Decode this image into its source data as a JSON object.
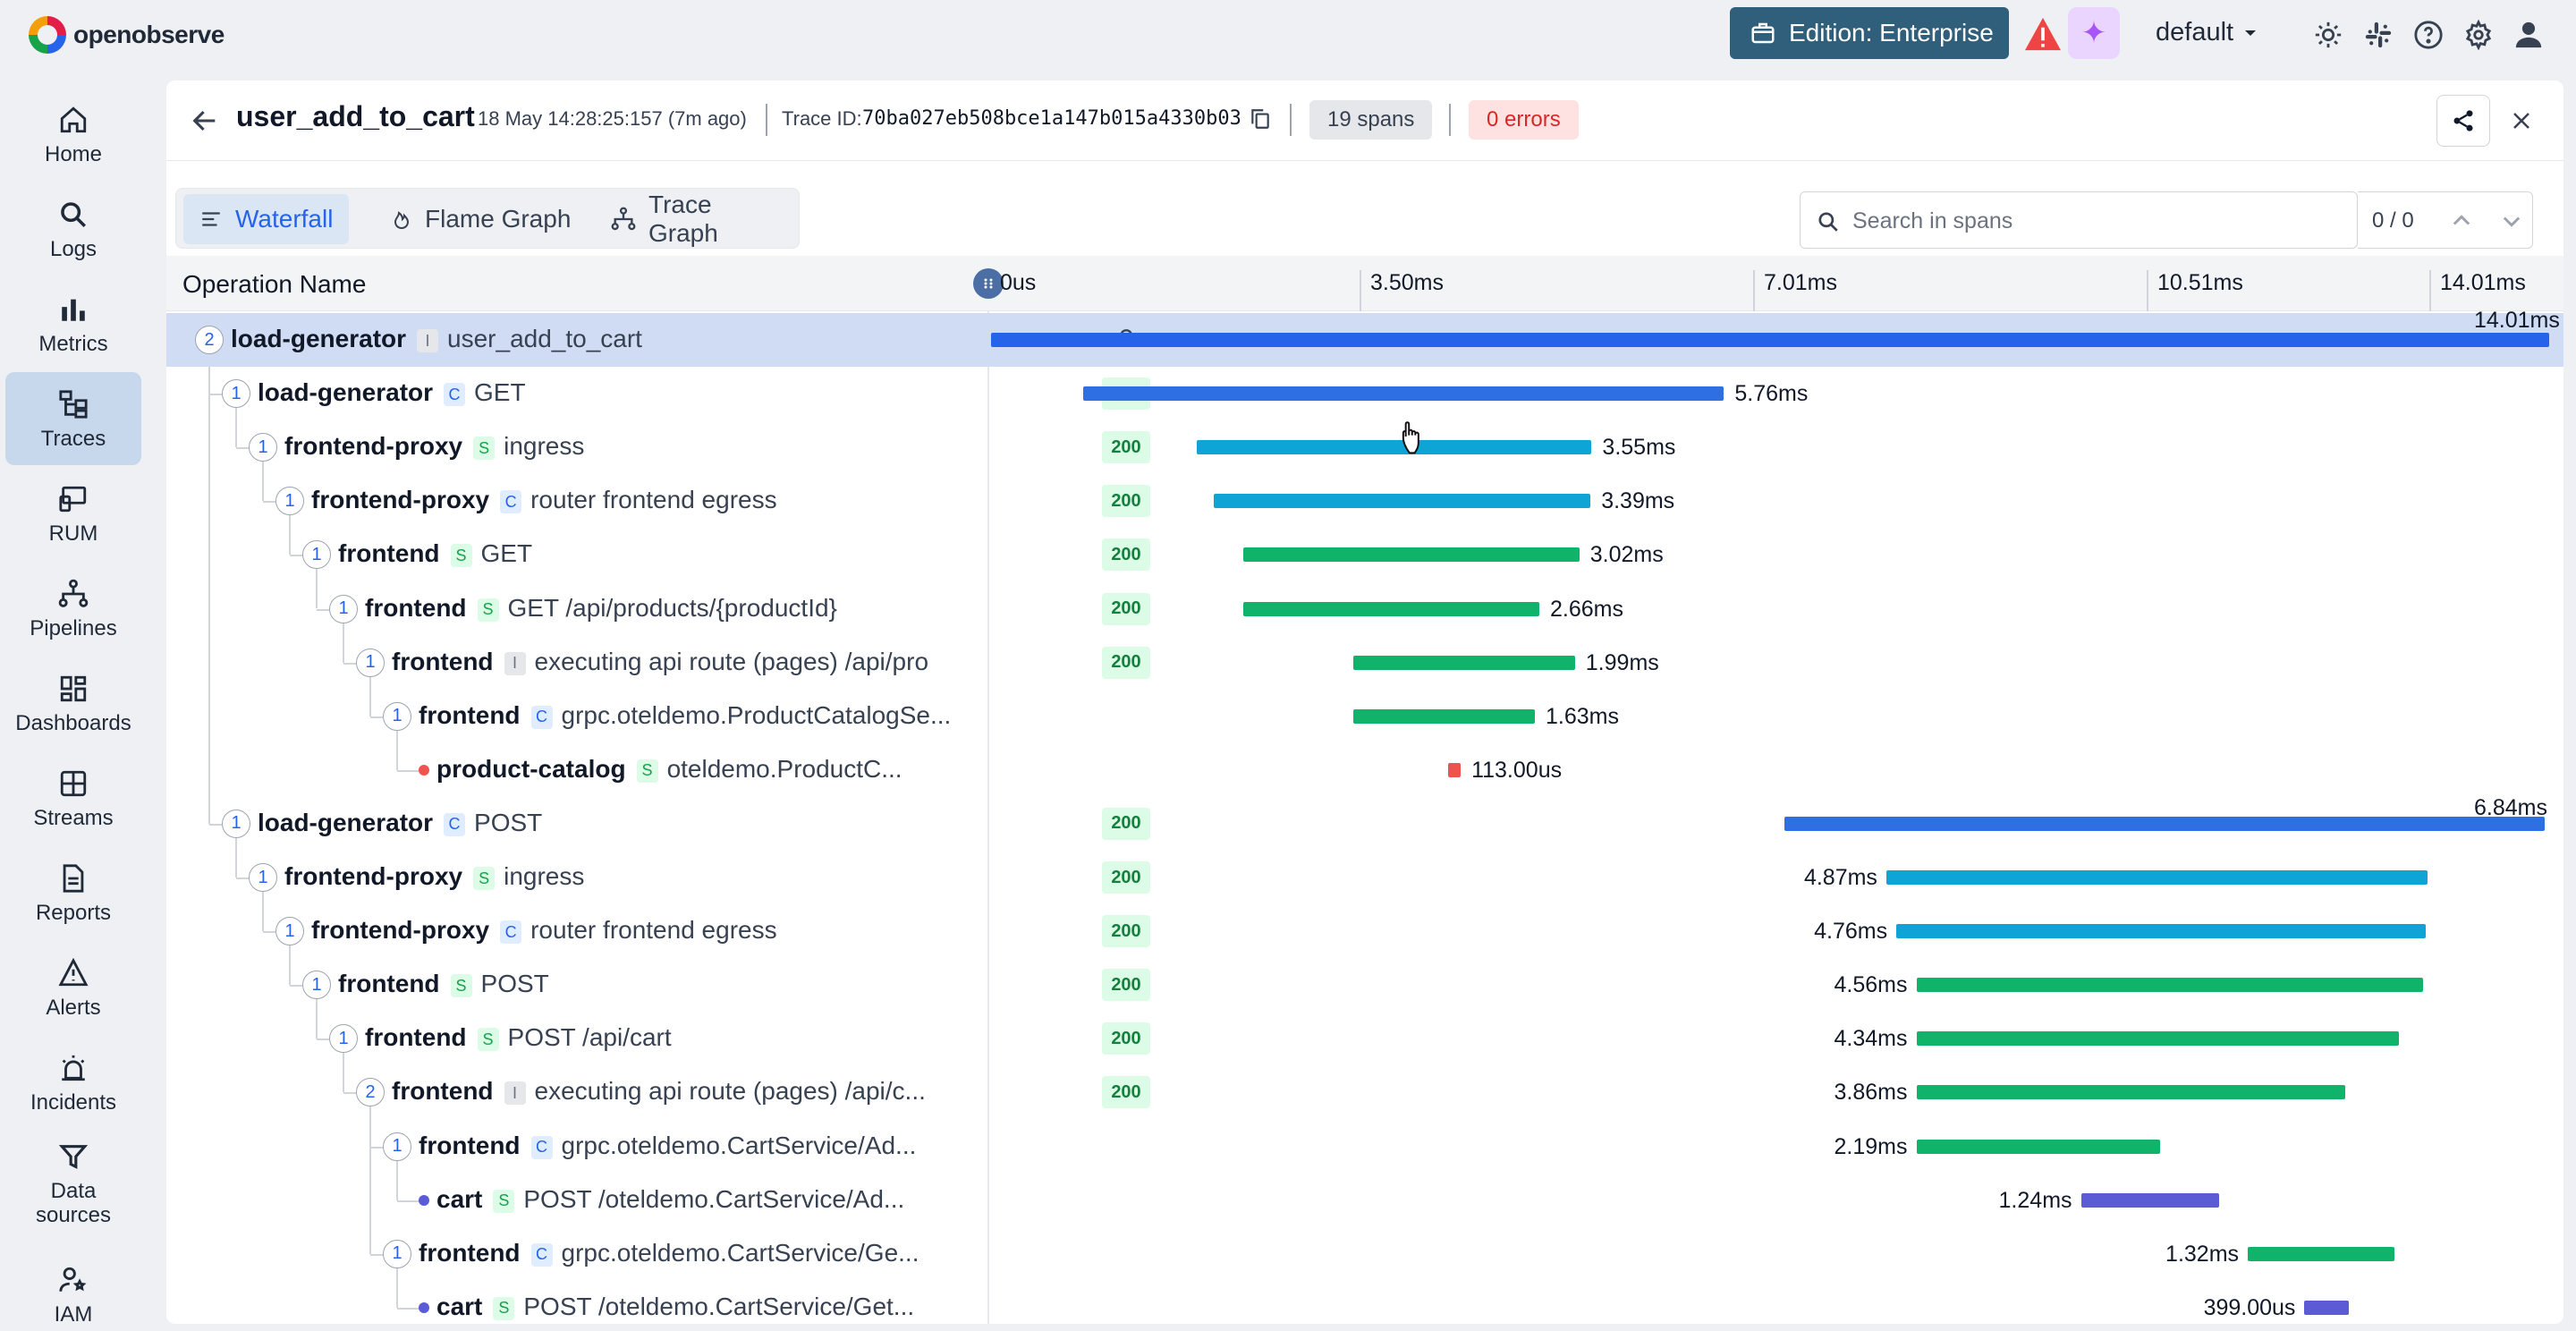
{
  "app": {
    "logo_text": "openobserve"
  },
  "topbar": {
    "edition_label": "Edition: Enterprise",
    "org": "default",
    "icons": [
      "warning-icon",
      "ai-assistant-icon",
      "theme-sun-icon",
      "slack-icon",
      "help-icon",
      "settings-icon",
      "user-icon"
    ]
  },
  "sidebar": {
    "items": [
      {
        "label": "Home",
        "icon": "home-icon",
        "active": false
      },
      {
        "label": "Logs",
        "icon": "search-icon",
        "active": false
      },
      {
        "label": "Metrics",
        "icon": "bar-chart-icon",
        "active": false
      },
      {
        "label": "Traces",
        "icon": "traces-icon",
        "active": true
      },
      {
        "label": "RUM",
        "icon": "devices-icon",
        "active": false
      },
      {
        "label": "Pipelines",
        "icon": "pipeline-icon",
        "active": false
      },
      {
        "label": "Dashboards",
        "icon": "dashboard-icon",
        "active": false
      },
      {
        "label": "Streams",
        "icon": "grid-icon",
        "active": false
      },
      {
        "label": "Reports",
        "icon": "document-icon",
        "active": false
      },
      {
        "label": "Alerts",
        "icon": "warning-triangle-icon",
        "active": false
      },
      {
        "label": "Incidents",
        "icon": "alarm-icon",
        "active": false
      },
      {
        "label": "Data sources",
        "icon": "filter-icon",
        "active": false
      },
      {
        "label": "IAM",
        "icon": "iam-icon",
        "active": false
      }
    ]
  },
  "trace": {
    "title": "user_add_to_cart",
    "timestamp": "18 May 14:28:25:157 (7m ago)",
    "trace_id_label": "Trace ID:",
    "trace_id": "70ba027eb508bce1a147b015a4330b03",
    "spans_badge": "19 spans",
    "errors_badge": "0 errors"
  },
  "tabs": [
    {
      "label": "Waterfall",
      "icon": "list-icon",
      "active": true
    },
    {
      "label": "Flame Graph",
      "icon": "flame-icon",
      "active": false
    },
    {
      "label": "Trace Graph",
      "icon": "graph-icon",
      "active": false
    }
  ],
  "search": {
    "placeholder": "Search in spans",
    "count": "0 / 0"
  },
  "columns": {
    "operation_name": "Operation Name"
  },
  "timeline": {
    "ticks": [
      "0us",
      "3.50ms",
      "7.01ms",
      "10.51ms",
      "14.01ms"
    ]
  },
  "spans": [
    {
      "depth": 0,
      "count": "2",
      "service": "load-generator",
      "kind": "I",
      "operation": "user_add_to_cart",
      "status": "",
      "start_ms": 0.0,
      "duration_ms": 14.01,
      "duration": "14.01ms",
      "color": "#2563eb",
      "selected": true
    },
    {
      "depth": 1,
      "count": "1",
      "service": "load-generator",
      "kind": "C",
      "operation": "GET",
      "status": "200",
      "start_ms": 0.83,
      "duration_ms": 5.76,
      "duration": "5.76ms",
      "color": "#2f6fe4"
    },
    {
      "depth": 2,
      "count": "1",
      "service": "frontend-proxy",
      "kind": "S",
      "operation": "ingress",
      "status": "200",
      "start_ms": 1.85,
      "duration_ms": 3.55,
      "duration": "3.55ms",
      "color": "#0ea5d6"
    },
    {
      "depth": 3,
      "count": "1",
      "service": "frontend-proxy",
      "kind": "C",
      "operation": "router frontend egress",
      "status": "200",
      "start_ms": 2.0,
      "duration_ms": 3.39,
      "duration": "3.39ms",
      "color": "#0ea5d6"
    },
    {
      "depth": 4,
      "count": "1",
      "service": "frontend",
      "kind": "S",
      "operation": "GET",
      "status": "200",
      "start_ms": 2.27,
      "duration_ms": 3.02,
      "duration": "3.02ms",
      "color": "#10b36a"
    },
    {
      "depth": 5,
      "count": "1",
      "service": "frontend",
      "kind": "S",
      "operation": "GET /api/products/{productId}",
      "status": "200",
      "start_ms": 2.27,
      "duration_ms": 2.66,
      "duration": "2.66ms",
      "color": "#10b36a"
    },
    {
      "depth": 6,
      "count": "1",
      "service": "frontend",
      "kind": "I",
      "operation": "executing api route (pages) /api/pro",
      "status": "200",
      "start_ms": 3.26,
      "duration_ms": 1.99,
      "duration": "1.99ms",
      "color": "#10b36a"
    },
    {
      "depth": 7,
      "count": "1",
      "service": "frontend",
      "kind": "C",
      "operation": "grpc.oteldemo.ProductCatalogSe...",
      "status": "",
      "start_ms": 3.26,
      "duration_ms": 1.63,
      "duration": "1.63ms",
      "color": "#10b36a"
    },
    {
      "depth": 8,
      "count": "",
      "service": "product-catalog",
      "kind": "S",
      "operation": "oteldemo.ProductC...",
      "status": "",
      "start_ms": 4.11,
      "duration_ms": 0.113,
      "duration": "113.00us",
      "color": "#ef5350",
      "leaf": true
    },
    {
      "depth": 1,
      "count": "1",
      "service": "load-generator",
      "kind": "C",
      "operation": "POST",
      "status": "200",
      "start_ms": 7.13,
      "duration_ms": 6.84,
      "duration": "6.84ms",
      "color": "#2f6fe4"
    },
    {
      "depth": 2,
      "count": "1",
      "service": "frontend-proxy",
      "kind": "S",
      "operation": "ingress",
      "status": "200",
      "start_ms": 8.05,
      "duration_ms": 4.87,
      "duration": "4.87ms",
      "color": "#0ea5d6"
    },
    {
      "depth": 3,
      "count": "1",
      "service": "frontend-proxy",
      "kind": "C",
      "operation": "router frontend egress",
      "status": "200",
      "start_ms": 8.14,
      "duration_ms": 4.76,
      "duration": "4.76ms",
      "color": "#0ea5d6"
    },
    {
      "depth": 4,
      "count": "1",
      "service": "frontend",
      "kind": "S",
      "operation": "POST",
      "status": "200",
      "start_ms": 8.32,
      "duration_ms": 4.56,
      "duration": "4.56ms",
      "color": "#10b36a"
    },
    {
      "depth": 5,
      "count": "1",
      "service": "frontend",
      "kind": "S",
      "operation": "POST /api/cart",
      "status": "200",
      "start_ms": 8.32,
      "duration_ms": 4.34,
      "duration": "4.34ms",
      "color": "#10b36a"
    },
    {
      "depth": 6,
      "count": "2",
      "service": "frontend",
      "kind": "I",
      "operation": "executing api route (pages) /api/c...",
      "status": "200",
      "start_ms": 8.32,
      "duration_ms": 3.86,
      "duration": "3.86ms",
      "color": "#10b36a"
    },
    {
      "depth": 7,
      "count": "1",
      "service": "frontend",
      "kind": "C",
      "operation": "grpc.oteldemo.CartService/Ad...",
      "status": "",
      "start_ms": 8.32,
      "duration_ms": 2.19,
      "duration": "2.19ms",
      "color": "#10b36a"
    },
    {
      "depth": 8,
      "count": "",
      "service": "cart",
      "kind": "S",
      "operation": "POST /oteldemo.CartService/Ad...",
      "status": "",
      "start_ms": 9.8,
      "duration_ms": 1.24,
      "duration": "1.24ms",
      "color": "#5b5bd6",
      "leaf": true
    },
    {
      "depth": 7,
      "count": "1",
      "service": "frontend",
      "kind": "C",
      "operation": "grpc.oteldemo.CartService/Ge...",
      "status": "",
      "start_ms": 11.3,
      "duration_ms": 1.32,
      "duration": "1.32ms",
      "color": "#10b36a"
    },
    {
      "depth": 8,
      "count": "",
      "service": "cart",
      "kind": "S",
      "operation": "POST /oteldemo.CartService/Get...",
      "status": "",
      "start_ms": 11.81,
      "duration_ms": 0.399,
      "duration": "399.00us",
      "color": "#5b5bd6",
      "leaf": true
    }
  ]
}
